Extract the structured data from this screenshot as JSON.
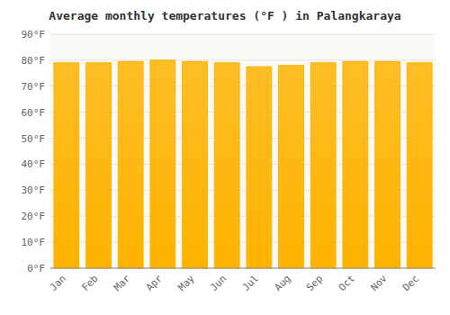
{
  "chart_data": {
    "type": "bar",
    "title": "Average monthly temperatures (°F ) in Palangkaraya",
    "categories": [
      "Jan",
      "Feb",
      "Mar",
      "Apr",
      "May",
      "Jun",
      "Jul",
      "Aug",
      "Sep",
      "Oct",
      "Nov",
      "Dec"
    ],
    "values": [
      79,
      79,
      79.5,
      80,
      79.5,
      79,
      77.5,
      78,
      79,
      79.5,
      79.5,
      79
    ],
    "color": "#FFB300",
    "ylim": [
      0,
      90
    ],
    "yticks": [
      {
        "value": 0,
        "label": "0°F"
      },
      {
        "value": 10,
        "label": "10°F"
      },
      {
        "value": 20,
        "label": "20°F"
      },
      {
        "value": 30,
        "label": "30°F"
      },
      {
        "value": 40,
        "label": "40°F"
      },
      {
        "value": 50,
        "label": "50°F"
      },
      {
        "value": 60,
        "label": "60°F"
      },
      {
        "value": 70,
        "label": "70°F"
      },
      {
        "value": 80,
        "label": "80°F"
      },
      {
        "value": 90,
        "label": "90°F"
      }
    ],
    "grid": true
  }
}
